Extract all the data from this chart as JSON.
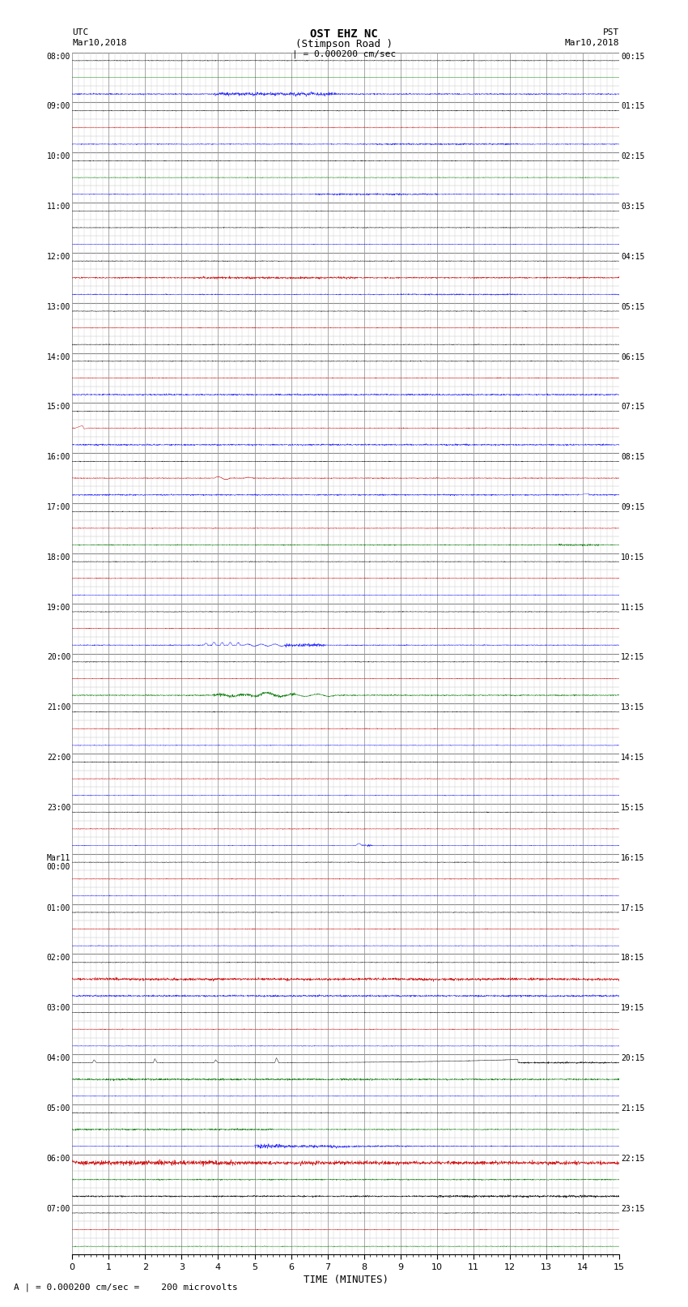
{
  "title_line1": "OST EHZ NC",
  "title_line2": "(Stimpson Road )",
  "scale_label": "| = 0.000200 cm/sec",
  "left_label_1": "UTC",
  "left_label_2": "Mar10,2018",
  "right_label_1": "PST",
  "right_label_2": "Mar10,2018",
  "xlabel": "TIME (MINUTES)",
  "footer": "A | = 0.000200 cm/sec =    200 microvolts",
  "xlim": [
    0,
    15
  ],
  "xticks": [
    0,
    1,
    2,
    3,
    4,
    5,
    6,
    7,
    8,
    9,
    10,
    11,
    12,
    13,
    14,
    15
  ],
  "background_color": "#ffffff",
  "utc_labels": [
    {
      "text": "08:00",
      "row": 0
    },
    {
      "text": "09:00",
      "row": 3
    },
    {
      "text": "10:00",
      "row": 6
    },
    {
      "text": "11:00",
      "row": 9
    },
    {
      "text": "12:00",
      "row": 12
    },
    {
      "text": "13:00",
      "row": 15
    },
    {
      "text": "14:00",
      "row": 18
    },
    {
      "text": "15:00",
      "row": 21
    },
    {
      "text": "16:00",
      "row": 24
    },
    {
      "text": "17:00",
      "row": 27
    },
    {
      "text": "18:00",
      "row": 30
    },
    {
      "text": "19:00",
      "row": 33
    },
    {
      "text": "20:00",
      "row": 36
    },
    {
      "text": "21:00",
      "row": 39
    },
    {
      "text": "22:00",
      "row": 42
    },
    {
      "text": "23:00",
      "row": 45
    },
    {
      "text": "Mar11\n00:00",
      "row": 48
    },
    {
      "text": "01:00",
      "row": 51
    },
    {
      "text": "02:00",
      "row": 54
    },
    {
      "text": "03:00",
      "row": 57
    },
    {
      "text": "04:00",
      "row": 60
    },
    {
      "text": "05:00",
      "row": 63
    },
    {
      "text": "06:00",
      "row": 66
    },
    {
      "text": "07:00",
      "row": 69
    }
  ],
  "pst_labels": [
    {
      "text": "00:15",
      "row": 0
    },
    {
      "text": "01:15",
      "row": 3
    },
    {
      "text": "02:15",
      "row": 6
    },
    {
      "text": "03:15",
      "row": 9
    },
    {
      "text": "04:15",
      "row": 12
    },
    {
      "text": "05:15",
      "row": 15
    },
    {
      "text": "06:15",
      "row": 18
    },
    {
      "text": "07:15",
      "row": 21
    },
    {
      "text": "08:15",
      "row": 24
    },
    {
      "text": "09:15",
      "row": 27
    },
    {
      "text": "10:15",
      "row": 30
    },
    {
      "text": "11:15",
      "row": 33
    },
    {
      "text": "12:15",
      "row": 36
    },
    {
      "text": "13:15",
      "row": 39
    },
    {
      "text": "14:15",
      "row": 42
    },
    {
      "text": "15:15",
      "row": 45
    },
    {
      "text": "16:15",
      "row": 48
    },
    {
      "text": "17:15",
      "row": 51
    },
    {
      "text": "18:15",
      "row": 54
    },
    {
      "text": "19:15",
      "row": 57
    },
    {
      "text": "20:15",
      "row": 60
    },
    {
      "text": "21:15",
      "row": 63
    },
    {
      "text": "22:15",
      "row": 66
    },
    {
      "text": "23:15",
      "row": 69
    }
  ],
  "num_rows": 72,
  "row_colors": [
    "black",
    "red",
    "blue",
    "black",
    "red",
    "blue",
    "black",
    "red",
    "blue",
    "black",
    "red",
    "blue",
    "black",
    "red",
    "blue",
    "black",
    "red",
    "blue",
    "black",
    "red",
    "blue",
    "black",
    "red",
    "blue",
    "black",
    "red",
    "blue",
    "black",
    "red",
    "blue",
    "black",
    "red",
    "blue",
    "black",
    "red",
    "blue",
    "black",
    "red",
    "blue",
    "black",
    "red",
    "blue",
    "black",
    "red",
    "blue",
    "black",
    "red",
    "blue",
    "black",
    "red",
    "blue",
    "black",
    "red",
    "blue",
    "black",
    "red",
    "blue",
    "black",
    "red",
    "blue",
    "black",
    "red",
    "blue",
    "black",
    "red",
    "blue",
    "black",
    "red",
    "blue",
    "black",
    "red",
    "blue"
  ],
  "color_map": {
    "blue": "#1a1aff",
    "red": "#cc0000",
    "green": "#007700",
    "black": "#000000"
  }
}
